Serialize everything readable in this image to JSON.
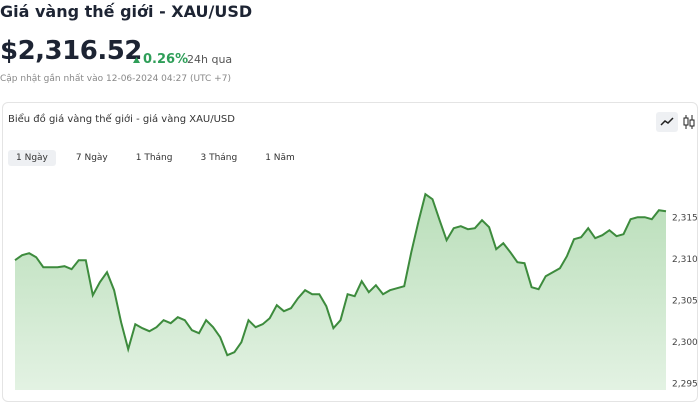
{
  "header": {
    "title": "Giá vàng thế giới - XAU/USD",
    "price": "$2,316.52",
    "change": "0.26%",
    "period": "24h qua",
    "updated": "Cập nhật gần nhất vào 12-06-2024 04:27 (UTC +7)"
  },
  "card": {
    "title": "Biểu đồ giá vàng thế giới - giá vàng XAU/USD",
    "tabs": [
      "1 Ngày",
      "7 Ngày",
      "1 Tháng",
      "3 Tháng",
      "1 Năm"
    ]
  },
  "chart_data": {
    "type": "area",
    "color": "#3d8b3d",
    "values": [
      2309.94,
      2310.54,
      2310.78,
      2310.3,
      2309.1,
      2309.1,
      2309.1,
      2309.22,
      2308.86,
      2309.94,
      2309.94,
      2305.72,
      2307.29,
      2308.49,
      2306.33,
      2302.47,
      2299.22,
      2302.23,
      2301.75,
      2301.39,
      2301.87,
      2302.71,
      2302.35,
      2303.07,
      2302.71,
      2301.51,
      2301.14,
      2302.71,
      2301.87,
      2300.66,
      2298.49,
      2298.86,
      2300.06,
      2302.71,
      2301.87,
      2302.23,
      2302.95,
      2304.52,
      2303.8,
      2304.16,
      2305.36,
      2306.33,
      2305.84,
      2305.84,
      2304.4,
      2301.75,
      2302.71,
      2305.84,
      2305.6,
      2307.41,
      2306.08,
      2306.93,
      2305.84,
      2306.33,
      2306.57,
      2306.81,
      2310.9,
      2314.52,
      2317.89,
      2317.29,
      2314.76,
      2312.35,
      2313.8,
      2314.04,
      2313.67,
      2313.8,
      2314.76,
      2313.92,
      2311.27,
      2311.99,
      2310.9,
      2309.7,
      2309.58,
      2306.69,
      2306.45,
      2308.01,
      2308.49,
      2308.98,
      2310.42,
      2312.47,
      2312.71,
      2313.8,
      2312.59,
      2312.95,
      2313.55,
      2312.83,
      2313.07,
      2314.88,
      2315.12,
      2315.12,
      2314.88,
      2315.96,
      2315.84
    ],
    "ylim": [
      2294.3,
      2319
    ],
    "yticks": [
      {
        "value": 2315,
        "label": "2,315"
      },
      {
        "value": 2310,
        "label": "2,310"
      },
      {
        "value": 2305,
        "label": "2,305"
      },
      {
        "value": 2300,
        "label": "2,300"
      },
      {
        "value": 2295,
        "label": "2,295"
      }
    ],
    "grid": false
  }
}
